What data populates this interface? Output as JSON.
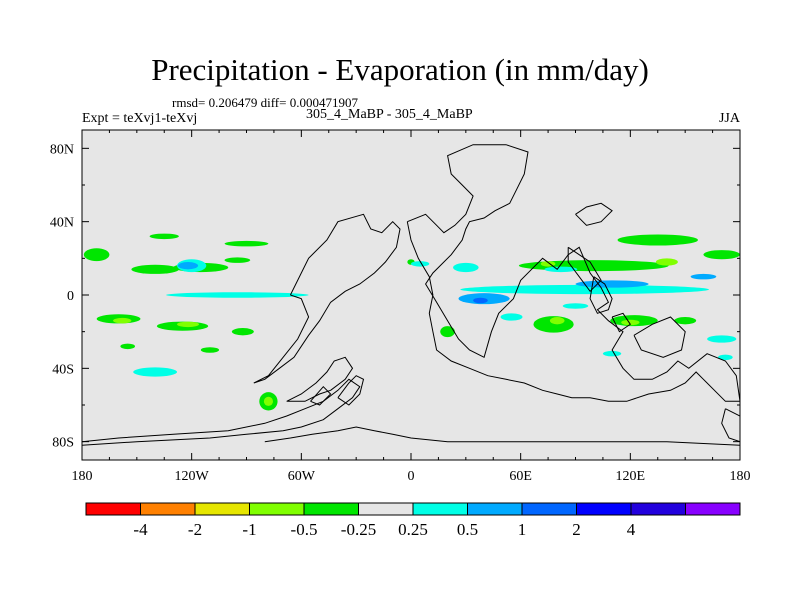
{
  "chart_data": {
    "type": "heatmap",
    "title": "Precipitation - Evaporation (in mm/day)",
    "stats": "rmsd= 0.206479 diff= 0.000471907",
    "left_label": "Expt = teXvj1-teXvj",
    "center_label": "305_4_MaBP - 305_4_MaBP",
    "right_label": "JJA",
    "x_ticks": [
      {
        "lon": -180,
        "label": "180"
      },
      {
        "lon": -120,
        "label": "120W"
      },
      {
        "lon": -60,
        "label": "60W"
      },
      {
        "lon": 0,
        "label": "0"
      },
      {
        "lon": 60,
        "label": "60E"
      },
      {
        "lon": 120,
        "label": "120E"
      },
      {
        "lon": 180,
        "label": "180"
      }
    ],
    "y_ticks": [
      {
        "lat": 80,
        "label": "80N"
      },
      {
        "lat": 40,
        "label": "40N"
      },
      {
        "lat": 0,
        "label": "0"
      },
      {
        "lat": -40,
        "label": "40S"
      },
      {
        "lat": -80,
        "label": "80S"
      }
    ],
    "xlim": [
      -180,
      180
    ],
    "ylim": [
      -90,
      90
    ],
    "colorbar": {
      "colors": [
        "#ff0000",
        "#ff8000",
        "#e6e600",
        "#80ff00",
        "#00e600",
        "#e6e6e6",
        "#00ffe6",
        "#00aaff",
        "#0066ff",
        "#0000ff",
        "#2200dd",
        "#8800ff"
      ],
      "labels": [
        "-4",
        "-2",
        "-1",
        "-0.5",
        "-0.25",
        "0.25",
        "0.5",
        "1",
        "2",
        "4"
      ]
    },
    "anomalies": [
      {
        "cls": 4,
        "lon": -172,
        "lat": 22,
        "w": 14,
        "h": 7
      },
      {
        "cls": 4,
        "lon": -140,
        "lat": 14,
        "w": 26,
        "h": 5
      },
      {
        "cls": 4,
        "lon": -115,
        "lat": 15,
        "w": 30,
        "h": 5
      },
      {
        "cls": 4,
        "lon": -135,
        "lat": 32,
        "w": 16,
        "h": 3
      },
      {
        "cls": 4,
        "lon": -90,
        "lat": 28,
        "w": 24,
        "h": 3
      },
      {
        "cls": 4,
        "lon": -95,
        "lat": 19,
        "w": 14,
        "h": 3
      },
      {
        "cls": 6,
        "lon": -120,
        "lat": 16,
        "w": 16,
        "h": 7
      },
      {
        "cls": 7,
        "lon": -122,
        "lat": 16,
        "w": 11,
        "h": 4
      },
      {
        "cls": 6,
        "lon": -95,
        "lat": 0,
        "w": 78,
        "h": 3
      },
      {
        "cls": 4,
        "lon": -160,
        "lat": -13,
        "w": 24,
        "h": 5
      },
      {
        "cls": 3,
        "lon": -158,
        "lat": -14,
        "w": 10,
        "h": 3
      },
      {
        "cls": 4,
        "lon": -125,
        "lat": -17,
        "w": 28,
        "h": 5
      },
      {
        "cls": 3,
        "lon": -122,
        "lat": -16,
        "w": 12,
        "h": 3
      },
      {
        "cls": 4,
        "lon": -92,
        "lat": -20,
        "w": 12,
        "h": 4
      },
      {
        "cls": 4,
        "lon": -155,
        "lat": -28,
        "w": 8,
        "h": 3
      },
      {
        "cls": 4,
        "lon": -110,
        "lat": -30,
        "w": 10,
        "h": 3
      },
      {
        "cls": 6,
        "lon": -140,
        "lat": -42,
        "w": 24,
        "h": 5
      },
      {
        "cls": 4,
        "lon": -78,
        "lat": -58,
        "w": 10,
        "h": 10
      },
      {
        "cls": 3,
        "lon": -78,
        "lat": -58,
        "w": 5,
        "h": 5
      },
      {
        "cls": 4,
        "lon": 0,
        "lat": 18,
        "w": 4,
        "h": 3
      },
      {
        "cls": 6,
        "lon": 5,
        "lat": 17,
        "w": 10,
        "h": 3
      },
      {
        "cls": 6,
        "lon": 30,
        "lat": 15,
        "w": 14,
        "h": 5
      },
      {
        "cls": 4,
        "lon": 100,
        "lat": 16,
        "w": 82,
        "h": 6
      },
      {
        "cls": 4,
        "lon": 135,
        "lat": 30,
        "w": 44,
        "h": 6
      },
      {
        "cls": 4,
        "lon": 170,
        "lat": 22,
        "w": 20,
        "h": 5
      },
      {
        "cls": 3,
        "lon": 140,
        "lat": 18,
        "w": 12,
        "h": 4
      },
      {
        "cls": 3,
        "lon": 75,
        "lat": 17,
        "w": 8,
        "h": 3
      },
      {
        "cls": 6,
        "lon": 82,
        "lat": 14,
        "w": 18,
        "h": 3
      },
      {
        "cls": 6,
        "lon": 95,
        "lat": 3,
        "w": 136,
        "h": 5
      },
      {
        "cls": 7,
        "lon": 40,
        "lat": -2,
        "w": 28,
        "h": 6
      },
      {
        "cls": 7,
        "lon": 110,
        "lat": 6,
        "w": 40,
        "h": 4
      },
      {
        "cls": 7,
        "lon": 160,
        "lat": 10,
        "w": 14,
        "h": 3
      },
      {
        "cls": 8,
        "lon": 38,
        "lat": -3,
        "w": 8,
        "h": 3
      },
      {
        "cls": 4,
        "lon": 78,
        "lat": -16,
        "w": 22,
        "h": 9
      },
      {
        "cls": 3,
        "lon": 80,
        "lat": -14,
        "w": 8,
        "h": 4
      },
      {
        "cls": 4,
        "lon": 122,
        "lat": -14,
        "w": 26,
        "h": 6
      },
      {
        "cls": 3,
        "lon": 120,
        "lat": -15,
        "w": 10,
        "h": 3
      },
      {
        "cls": 4,
        "lon": 150,
        "lat": -14,
        "w": 12,
        "h": 4
      },
      {
        "cls": 4,
        "lon": 20,
        "lat": -20,
        "w": 8,
        "h": 6
      },
      {
        "cls": 6,
        "lon": 55,
        "lat": -12,
        "w": 12,
        "h": 4
      },
      {
        "cls": 6,
        "lon": 110,
        "lat": -32,
        "w": 10,
        "h": 3
      },
      {
        "cls": 6,
        "lon": 170,
        "lat": -24,
        "w": 16,
        "h": 4
      },
      {
        "cls": 6,
        "lon": 172,
        "lat": -34,
        "w": 8,
        "h": 3
      },
      {
        "cls": 6,
        "lon": 90,
        "lat": -6,
        "w": 14,
        "h": 3
      }
    ],
    "coastlines": [
      [
        [
          -180,
          -82
        ],
        [
          -150,
          -80
        ],
        [
          -110,
          -78
        ],
        [
          -90,
          -76
        ],
        [
          -70,
          -74
        ],
        [
          -60,
          -72
        ],
        [
          -48,
          -68
        ],
        [
          -40,
          -62
        ],
        [
          -32,
          -56
        ],
        [
          -28,
          -50
        ],
        [
          -34,
          -46
        ],
        [
          -40,
          -52
        ],
        [
          -48,
          -58
        ],
        [
          -58,
          -62
        ],
        [
          -68,
          -66
        ],
        [
          -80,
          -70
        ],
        [
          -100,
          -74
        ],
        [
          -130,
          -76
        ],
        [
          -160,
          -78
        ],
        [
          -180,
          -80
        ]
      ],
      [
        [
          -44,
          -52
        ],
        [
          -36,
          -46
        ],
        [
          -32,
          -40
        ],
        [
          -36,
          -34
        ],
        [
          -42,
          -36
        ],
        [
          -46,
          -42
        ],
        [
          -52,
          -48
        ],
        [
          -60,
          -54
        ],
        [
          -68,
          -58
        ],
        [
          -58,
          -58
        ],
        [
          -50,
          -54
        ],
        [
          -44,
          -52
        ]
      ],
      [
        [
          -40,
          -56
        ],
        [
          -34,
          -48
        ],
        [
          -30,
          -44
        ],
        [
          -26,
          -46
        ],
        [
          -28,
          -54
        ],
        [
          -34,
          -60
        ],
        [
          -40,
          -56
        ]
      ],
      [
        [
          -55,
          -58
        ],
        [
          -48,
          -50
        ],
        [
          -44,
          -54
        ],
        [
          -50,
          -60
        ],
        [
          -55,
          -58
        ]
      ],
      [
        [
          -66,
          0
        ],
        [
          -56,
          20
        ],
        [
          -46,
          30
        ],
        [
          -40,
          40
        ],
        [
          -26,
          44
        ],
        [
          -22,
          36
        ],
        [
          -16,
          34
        ],
        [
          -10,
          40
        ],
        [
          -6,
          36
        ],
        [
          -8,
          26
        ],
        [
          -14,
          18
        ],
        [
          -20,
          12
        ],
        [
          -28,
          6
        ],
        [
          -36,
          2
        ],
        [
          -44,
          -4
        ],
        [
          -50,
          -14
        ],
        [
          -56,
          -22
        ],
        [
          -64,
          -34
        ],
        [
          -72,
          -40
        ],
        [
          -80,
          -46
        ],
        [
          -86,
          -48
        ],
        [
          -78,
          -44
        ],
        [
          -70,
          -34
        ],
        [
          -62,
          -24
        ],
        [
          -56,
          -12
        ],
        [
          -60,
          -2
        ],
        [
          -66,
          0
        ]
      ],
      [
        [
          -2,
          40
        ],
        [
          8,
          44
        ],
        [
          14,
          38
        ],
        [
          18,
          34
        ],
        [
          24,
          38
        ],
        [
          30,
          44
        ],
        [
          34,
          54
        ],
        [
          28,
          60
        ],
        [
          22,
          66
        ],
        [
          20,
          76
        ],
        [
          34,
          82
        ],
        [
          52,
          82
        ],
        [
          64,
          78
        ],
        [
          62,
          66
        ],
        [
          58,
          58
        ],
        [
          54,
          50
        ],
        [
          46,
          46
        ],
        [
          40,
          42
        ],
        [
          32,
          40
        ],
        [
          30,
          36
        ],
        [
          28,
          30
        ],
        [
          22,
          22
        ],
        [
          12,
          12
        ],
        [
          8,
          6
        ],
        [
          14,
          -4
        ],
        [
          20,
          -14
        ],
        [
          26,
          -24
        ],
        [
          32,
          -30
        ],
        [
          40,
          -34
        ],
        [
          44,
          -20
        ],
        [
          48,
          -10
        ],
        [
          56,
          -2
        ],
        [
          60,
          8
        ],
        [
          66,
          14
        ],
        [
          72,
          20
        ],
        [
          80,
          14
        ],
        [
          86,
          22
        ],
        [
          92,
          26
        ],
        [
          98,
          12
        ],
        [
          104,
          4
        ],
        [
          108,
          -4
        ],
        [
          102,
          -8
        ],
        [
          108,
          -14
        ],
        [
          116,
          -20
        ],
        [
          110,
          -30
        ],
        [
          116,
          -40
        ],
        [
          122,
          -46
        ],
        [
          132,
          -46
        ],
        [
          140,
          -42
        ],
        [
          146,
          -36
        ],
        [
          152,
          -40
        ],
        [
          162,
          -32
        ],
        [
          172,
          -36
        ],
        [
          178,
          -44
        ],
        [
          180,
          -58
        ],
        [
          172,
          -58
        ],
        [
          166,
          -52
        ],
        [
          160,
          -46
        ],
        [
          156,
          -42
        ],
        [
          150,
          -48
        ],
        [
          142,
          -52
        ],
        [
          130,
          -54
        ],
        [
          118,
          -58
        ],
        [
          108,
          -58
        ],
        [
          98,
          -56
        ],
        [
          88,
          -56
        ],
        [
          80,
          -54
        ],
        [
          72,
          -52
        ],
        [
          62,
          -48
        ],
        [
          52,
          -46
        ],
        [
          42,
          -44
        ],
        [
          32,
          -40
        ],
        [
          22,
          -36
        ],
        [
          14,
          -30
        ],
        [
          12,
          -20
        ],
        [
          10,
          -10
        ],
        [
          12,
          0
        ],
        [
          10,
          10
        ],
        [
          4,
          20
        ],
        [
          0,
          30
        ],
        [
          -2,
          40
        ]
      ],
      [
        [
          86,
          26
        ],
        [
          92,
          22
        ],
        [
          98,
          18
        ],
        [
          104,
          8
        ],
        [
          98,
          2
        ],
        [
          92,
          10
        ],
        [
          86,
          18
        ],
        [
          86,
          26
        ]
      ],
      [
        [
          100,
          10
        ],
        [
          106,
          6
        ],
        [
          110,
          -2
        ],
        [
          108,
          -8
        ],
        [
          102,
          -10
        ],
        [
          98,
          -2
        ],
        [
          100,
          10
        ]
      ],
      [
        [
          110,
          -12
        ],
        [
          116,
          -10
        ],
        [
          120,
          -16
        ],
        [
          114,
          -20
        ],
        [
          110,
          -12
        ]
      ],
      [
        [
          122,
          -22
        ],
        [
          132,
          -16
        ],
        [
          142,
          -12
        ],
        [
          150,
          -20
        ],
        [
          148,
          -30
        ],
        [
          138,
          -34
        ],
        [
          126,
          -30
        ],
        [
          122,
          -22
        ]
      ],
      [
        [
          90,
          44
        ],
        [
          96,
          38
        ],
        [
          104,
          40
        ],
        [
          110,
          46
        ],
        [
          104,
          50
        ],
        [
          96,
          48
        ],
        [
          90,
          44
        ]
      ],
      [
        [
          -80,
          -80
        ],
        [
          -66,
          -78
        ],
        [
          -54,
          -76
        ],
        [
          -40,
          -74
        ],
        [
          -30,
          -72
        ],
        [
          -20,
          -74
        ],
        [
          -10,
          -76
        ],
        [
          0,
          -78
        ],
        [
          20,
          -80
        ],
        [
          60,
          -80
        ],
        [
          100,
          -80
        ],
        [
          140,
          -80
        ],
        [
          180,
          -82
        ]
      ],
      [
        [
          172,
          -62
        ],
        [
          180,
          -66
        ],
        [
          180,
          -80
        ],
        [
          174,
          -78
        ],
        [
          170,
          -70
        ],
        [
          172,
          -62
        ]
      ]
    ]
  }
}
